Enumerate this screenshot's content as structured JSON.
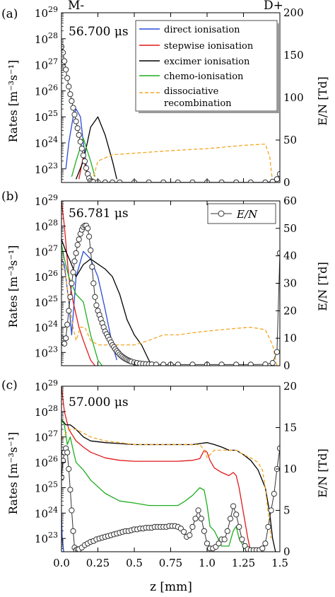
{
  "figure": {
    "top_labels": {
      "left": "M-",
      "right": "D+"
    },
    "xlabel": "z [mm]",
    "xticks": [
      0.0,
      0.25,
      0.5,
      0.75,
      1.0,
      1.25,
      1.5
    ],
    "xtick_labels": [
      "0.0",
      "0.25",
      "0.5",
      "0.75",
      "1.0",
      "1.25",
      "1.5"
    ],
    "ylabel_left": "Rates [m⁻³s⁻¹]",
    "ylabel_right": "E/N [Td]"
  },
  "legend_rates": [
    {
      "name": "direct ionisation",
      "color": "#2a4bd7",
      "style": "solid"
    },
    {
      "name": "stepwise ionisation",
      "color": "#e0191b",
      "style": "solid"
    },
    {
      "name": "excimer ionisation",
      "color": "#000000",
      "style": "solid"
    },
    {
      "name": "chemo-ionisation",
      "color": "#1fae1f",
      "style": "solid"
    },
    {
      "name": [
        "dissociative",
        "recombination"
      ],
      "color": "#f5a623",
      "style": "dashed"
    }
  ],
  "legend_en": {
    "name": "E/N",
    "marker": "open-circle"
  },
  "chart_data": [
    {
      "type": "line",
      "panel": "(a)",
      "time": "56.700 μs",
      "xlim": [
        0,
        1.5
      ],
      "ylim_left": [
        3e+22,
        1e+29
      ],
      "left_scale": "log",
      "left_ticks": [
        23,
        24,
        25,
        26,
        27,
        28,
        29
      ],
      "ylim_right": [
        0,
        200
      ],
      "right_ticks": [
        0,
        50,
        100,
        150,
        200
      ],
      "series": [
        {
          "name": "direct ionisation",
          "axis": "left",
          "x": [
            0.03,
            0.05,
            0.08,
            0.1,
            0.13,
            0.15,
            0.18
          ],
          "y": [
            1e+23,
            1e+24,
            1e+25,
            2e+25,
            1e+25,
            1e+24,
            5e+22
          ]
        },
        {
          "name": "stepwise ionisation",
          "axis": "left",
          "x": [
            0.12,
            0.15,
            0.18,
            0.2
          ],
          "y": [
            4e+22,
            3e+23,
            4e+22,
            3e+22
          ]
        },
        {
          "name": "excimer ionisation",
          "axis": "left",
          "x": [
            0.1,
            0.15,
            0.2,
            0.25,
            0.3,
            0.35,
            0.38
          ],
          "y": [
            4e+22,
            2e+23,
            4e+24,
            1e+25,
            2e+24,
            2e+23,
            4e+22
          ]
        },
        {
          "name": "chemo-ionisation",
          "axis": "left",
          "x": [
            0.07,
            0.1,
            0.15,
            0.2,
            0.23
          ],
          "y": [
            5e+22,
            2e+23,
            1.5e+24,
            2e+23,
            5e+22
          ]
        },
        {
          "name": "dissociative recombination",
          "axis": "left",
          "x": [
            0.2,
            0.25,
            0.35,
            0.5,
            0.75,
            1.0,
            1.25,
            1.4,
            1.43,
            1.45
          ],
          "y": [
            2e+22,
            2e+23,
            3.5e+23,
            4e+23,
            5e+23,
            6e+23,
            8e+23,
            9e+23,
            3e+23,
            3e+22
          ]
        },
        {
          "name": "E/N",
          "axis": "right",
          "marker": "circle",
          "x": [
            0.0,
            0.01,
            0.02,
            0.03,
            0.04,
            0.05,
            0.06,
            0.07,
            0.08,
            0.09,
            0.1,
            0.11,
            0.12,
            0.13,
            0.14,
            0.15,
            0.16,
            0.17,
            0.18,
            0.19,
            0.2,
            0.21,
            0.22,
            0.25,
            0.3,
            0.35,
            0.4,
            0.5,
            0.6,
            0.7,
            0.8,
            0.9,
            1.0,
            1.1,
            1.2,
            1.3,
            1.4,
            1.45,
            1.48,
            1.5
          ],
          "y": [
            160,
            153,
            143,
            133,
            123,
            113,
            104,
            96,
            88,
            80,
            72,
            64,
            56,
            48,
            40,
            32,
            25,
            17,
            10,
            5,
            2,
            1,
            0.5,
            0.3,
            0.2,
            0.2,
            0.2,
            0.2,
            0.2,
            0.2,
            0.2,
            0.2,
            0.2,
            0.2,
            0.2,
            0.2,
            0.2,
            1,
            4,
            10
          ]
        }
      ]
    },
    {
      "type": "line",
      "panel": "(b)",
      "time": "56.781 μs",
      "xlim": [
        0,
        1.5
      ],
      "ylim_left": [
        3e+22,
        1e+29
      ],
      "left_scale": "log",
      "left_ticks": [
        23,
        24,
        25,
        26,
        27,
        28,
        29
      ],
      "ylim_right": [
        0,
        60
      ],
      "right_ticks": [
        0,
        10,
        20,
        30,
        40,
        50,
        60
      ],
      "series": [
        {
          "name": "direct ionisation",
          "axis": "left",
          "x": [
            0.0,
            0.02,
            0.05,
            0.07,
            0.1,
            0.15,
            0.2,
            0.25,
            0.3,
            0.35,
            0.38
          ],
          "y": [
            5e+26,
            3e+26,
            1e+25,
            5e+23,
            1e+26,
            1e+27,
            5e+26,
            1e+26,
            5e+24,
            2e+23,
            5e+22
          ]
        },
        {
          "name": "stepwise ionisation",
          "axis": "left",
          "x": [
            0.0,
            0.02,
            0.05,
            0.08,
            0.12,
            0.15,
            0.2,
            0.23
          ],
          "y": [
            1e+29,
            1e+28,
            1e+26,
            1e+25,
            1e+24,
            3e+23,
            5e+22,
            3e+22
          ]
        },
        {
          "name": "excimer ionisation",
          "axis": "left",
          "x": [
            0.0,
            0.03,
            0.07,
            0.1,
            0.15,
            0.2,
            0.3,
            0.35,
            0.4,
            0.45,
            0.5,
            0.55,
            0.6,
            0.62
          ],
          "y": [
            3e+27,
            1e+27,
            3e+26,
            1e+26,
            3e+26,
            5e+26,
            2e+26,
            1e+26,
            2e+25,
            2e+24,
            5e+23,
            2e+23,
            5e+22,
            3e+22
          ]
        },
        {
          "name": "chemo-ionisation",
          "axis": "left",
          "x": [
            0.0,
            0.02,
            0.05,
            0.1,
            0.15,
            0.2,
            0.25,
            0.28
          ],
          "y": [
            2e+27,
            5e+26,
            1e+26,
            2e+25,
            1e+25,
            5e+23,
            5e+22,
            3e+22
          ]
        },
        {
          "name": "dissociative recombination",
          "axis": "left",
          "x": [
            0.0,
            0.03,
            0.05,
            0.08,
            0.1,
            0.13,
            0.16,
            0.2,
            0.25,
            0.3,
            0.4,
            0.5,
            0.6,
            0.7,
            0.8,
            0.9,
            1.0,
            1.1,
            1.2,
            1.3,
            1.4,
            1.45,
            1.48
          ],
          "y": [
            5e+26,
            1e+26,
            1e+25,
            1e+24,
            3e+23,
            1e+24,
            1e+24,
            3e+23,
            2e+23,
            2e+23,
            2e+23,
            2e+23,
            3e+23,
            5e+23,
            5e+23,
            6e+23,
            7e+23,
            8e+23,
            9e+23,
            1e+24,
            8e+23,
            2e+23,
            3e+22
          ]
        },
        {
          "name": "E/N",
          "axis": "right",
          "marker": "circle",
          "x": [
            0.0,
            0.01,
            0.02,
            0.03,
            0.04,
            0.05,
            0.06,
            0.07,
            0.08,
            0.09,
            0.1,
            0.11,
            0.12,
            0.13,
            0.14,
            0.15,
            0.16,
            0.17,
            0.18,
            0.19,
            0.2,
            0.21,
            0.22,
            0.23,
            0.24,
            0.25,
            0.26,
            0.27,
            0.28,
            0.29,
            0.3,
            0.31,
            0.32,
            0.33,
            0.34,
            0.35,
            0.36,
            0.37,
            0.38,
            0.39,
            0.4,
            0.41,
            0.42,
            0.43,
            0.44,
            0.45,
            0.46,
            0.47,
            0.48,
            0.5,
            0.52,
            0.54,
            0.56,
            0.58,
            0.6,
            0.62,
            0.65,
            0.7,
            0.75,
            0.8,
            0.9,
            1.0,
            1.1,
            1.2,
            1.3,
            1.4,
            1.45,
            1.48,
            1.5
          ],
          "y": [
            10,
            9,
            8,
            10,
            15,
            20,
            25,
            30,
            34,
            38,
            41,
            44,
            46,
            48,
            49.5,
            50.5,
            51,
            51,
            50,
            47,
            42,
            36,
            30,
            25,
            22,
            20,
            18.5,
            17,
            15.5,
            14,
            12.5,
            11.5,
            10.5,
            9.5,
            8.5,
            7.5,
            6.8,
            6,
            5.3,
            4.7,
            4.1,
            3.6,
            3.2,
            2.8,
            2.5,
            2.2,
            1.9,
            1.7,
            1.5,
            1.2,
            1,
            0.8,
            0.7,
            0.6,
            0.5,
            0.5,
            0.4,
            0.4,
            0.4,
            0.4,
            0.4,
            0.4,
            0.4,
            0.4,
            0.4,
            0.5,
            1,
            5,
            41
          ]
        }
      ]
    },
    {
      "type": "line",
      "panel": "(c)",
      "time": "57.000 μs",
      "xlim": [
        0,
        1.5
      ],
      "ylim_left": [
        3e+22,
        1e+29
      ],
      "left_scale": "log",
      "left_ticks": [
        23,
        24,
        25,
        26,
        27,
        28,
        29
      ],
      "ylim_right": [
        0,
        20
      ],
      "right_ticks": [
        0,
        5,
        10,
        15,
        20
      ],
      "series": [
        {
          "name": "direct ionisation",
          "axis": "left",
          "x": [
            0.0,
            0.005,
            0.01,
            0.015,
            0.02
          ],
          "y": [
            1e+24,
            1e+23,
            5e+22,
            3e+22,
            3e+22
          ]
        },
        {
          "name": "stepwise ionisation",
          "axis": "left",
          "x": [
            0.0,
            0.02,
            0.05,
            0.1,
            0.15,
            0.2,
            0.3,
            0.4,
            0.5,
            0.6,
            0.7,
            0.8,
            0.9,
            0.95,
            0.98,
            1.0,
            1.02,
            1.05,
            1.1,
            1.15,
            1.18,
            1.2,
            1.22,
            1.25,
            1.28,
            1.3,
            1.31
          ],
          "y": [
            1e+29,
            1e+28,
            2e+27,
            7e+26,
            4e+26,
            2.5e+26,
            1.5e+26,
            1.2e+26,
            1.1e+26,
            1.1e+26,
            1.1e+26,
            1.1e+26,
            1.2e+26,
            1.4e+26,
            3e+26,
            2.5e+26,
            1.2e+26,
            6e+25,
            4e+25,
            3e+25,
            4e+25,
            3e+25,
            1e+25,
            1e+24,
            1e+23,
            3e+22,
            3e+22
          ]
        },
        {
          "name": "excimer ionisation",
          "axis": "left",
          "x": [
            0.0,
            0.03,
            0.06,
            0.1,
            0.15,
            0.2,
            0.3,
            0.4,
            0.5,
            0.6,
            0.7,
            0.8,
            0.9,
            0.95,
            1.0,
            1.05,
            1.1,
            1.15,
            1.2,
            1.25,
            1.3,
            1.35,
            1.4,
            1.43,
            1.45,
            1.47,
            1.48
          ],
          "y": [
            5e+27,
            3e+27,
            3e+27,
            2e+27,
            1e+27,
            7e+26,
            6e+26,
            5.5e+26,
            5e+26,
            5e+26,
            5e+26,
            5e+26,
            5e+26,
            5.5e+26,
            6e+26,
            5e+26,
            4e+26,
            3e+26,
            3e+26,
            2e+26,
            1.2e+26,
            5e+25,
            1e+25,
            1e+24,
            1e+23,
            3e+22,
            3e+22
          ]
        },
        {
          "name": "chemo-ionisation",
          "axis": "left",
          "x": [
            0.0,
            0.02,
            0.04,
            0.06,
            0.08,
            0.1,
            0.15,
            0.2,
            0.3,
            0.4,
            0.5,
            0.6,
            0.7,
            0.8,
            0.85,
            0.9,
            0.95,
            0.98,
            1.0,
            1.02,
            1.05,
            1.1,
            1.15,
            1.18,
            1.2,
            1.22,
            1.25,
            1.27
          ],
          "y": [
            5e+27,
            3e+27,
            5e+26,
            1e+27,
            3e+26,
            1e+26,
            5e+25,
            2e+25,
            6e+24,
            3e+24,
            2.5e+24,
            2e+24,
            2e+24,
            2e+24,
            3e+24,
            5e+24,
            1e+25,
            8e+24,
            2e+24,
            3e+23,
            2e+23,
            5e+22,
            5e+22,
            2e+23,
            3e+23,
            1e+23,
            5e+22,
            3e+22
          ]
        },
        {
          "name": "dissociative recombination",
          "axis": "left",
          "x": [
            0.0,
            0.05,
            0.1,
            0.2,
            0.3,
            0.4,
            0.5,
            0.6,
            0.7,
            0.8,
            0.9,
            0.95,
            0.98,
            1.0,
            1.02,
            1.05,
            1.1,
            1.15,
            1.2,
            1.25,
            1.3,
            1.35,
            1.38,
            1.4,
            1.42,
            1.44
          ],
          "y": [
            8e+26,
            2e+27,
            2e+27,
            1e+27,
            7e+26,
            6e+26,
            5e+26,
            5e+26,
            5e+26,
            5e+26,
            5e+26,
            5e+26,
            3e+26,
            1.5e+26,
            2e+26,
            3e+26,
            3e+26,
            3e+26,
            3e+26,
            2e+26,
            1.5e+26,
            1e+26,
            5e+25,
            1e+25,
            1e+24,
            1e+23
          ]
        },
        {
          "name": "E/N",
          "axis": "right",
          "marker": "circle",
          "x": [
            0.0,
            0.01,
            0.02,
            0.03,
            0.04,
            0.05,
            0.06,
            0.07,
            0.08,
            0.09,
            0.1,
            0.11,
            0.12,
            0.14,
            0.16,
            0.18,
            0.2,
            0.22,
            0.24,
            0.26,
            0.28,
            0.3,
            0.32,
            0.34,
            0.36,
            0.38,
            0.4,
            0.42,
            0.44,
            0.46,
            0.48,
            0.5,
            0.52,
            0.54,
            0.56,
            0.58,
            0.6,
            0.62,
            0.64,
            0.66,
            0.68,
            0.7,
            0.72,
            0.74,
            0.76,
            0.78,
            0.8,
            0.82,
            0.84,
            0.86,
            0.88,
            0.9,
            0.92,
            0.94,
            0.96,
            0.98,
            1.0,
            1.02,
            1.04,
            1.06,
            1.08,
            1.1,
            1.12,
            1.14,
            1.16,
            1.18,
            1.2,
            1.22,
            1.24,
            1.26,
            1.28,
            1.3,
            1.32,
            1.34,
            1.36,
            1.38,
            1.4,
            1.42,
            1.44,
            1.46,
            1.48,
            1.5
          ],
          "y": [
            9,
            11,
            12,
            12.5,
            12,
            10,
            7.5,
            5,
            2.5,
            0.5,
            0.2,
            0.3,
            0.3,
            0.5,
            0.8,
            1,
            1.2,
            1.3,
            1.5,
            1.6,
            1.7,
            1.8,
            1.9,
            2,
            2.1,
            2.2,
            2.3,
            2.4,
            2.5,
            2.5,
            2.6,
            2.7,
            2.7,
            2.8,
            2.8,
            2.9,
            2.9,
            2.9,
            3,
            3,
            3,
            3,
            3,
            3.1,
            3.1,
            3.1,
            3,
            2.8,
            2.4,
            1.8,
            2,
            3,
            4,
            5,
            4,
            2.5,
            1,
            0.4,
            0.4,
            0.6,
            1,
            1.5,
            1.5,
            2.5,
            4,
            5.5,
            4.5,
            3,
            1.5,
            0.7,
            0.3,
            0.2,
            0.2,
            0.2,
            0.2,
            0.4,
            1,
            3,
            5,
            7,
            10,
            12.5
          ]
        }
      ]
    }
  ]
}
